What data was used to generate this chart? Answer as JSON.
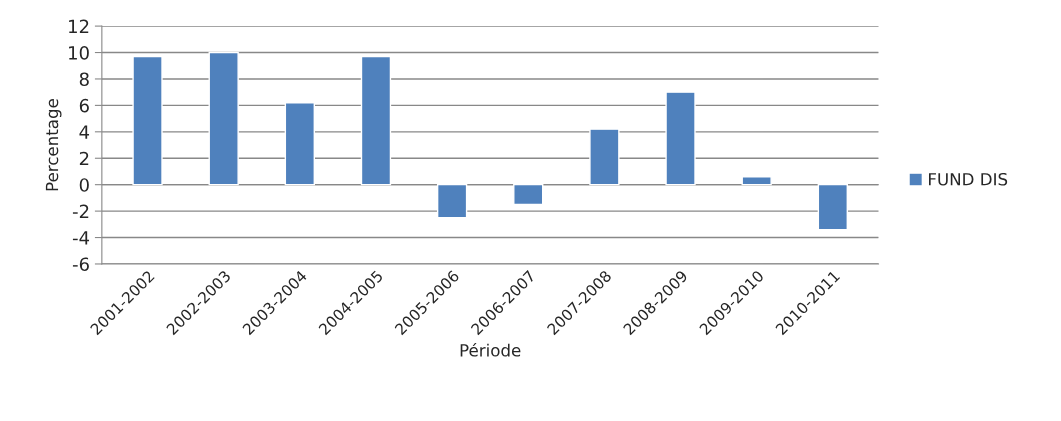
{
  "chart_data": {
    "type": "bar",
    "xlabel": "Période",
    "ylabel": "Percentage",
    "categories": [
      "2001-2002",
      "2002-2003",
      "2003-2004",
      "2004-2005",
      "2005-2006",
      "2006-2007",
      "2007-2008",
      "2008-2009",
      "2009-2010",
      "2010-2011"
    ],
    "series": [
      {
        "name": "FUND DIS",
        "color": "#4f81bd",
        "values": [
          9.7,
          10,
          6.2,
          9.7,
          -2.5,
          -1.5,
          4.2,
          7.0,
          0.6,
          -3.4
        ]
      }
    ],
    "ylim": [
      -6,
      12
    ],
    "yticks": [
      -6,
      -4,
      -2,
      0,
      2,
      4,
      6,
      8,
      10,
      12
    ],
    "grid": "y",
    "legend": "right"
  }
}
